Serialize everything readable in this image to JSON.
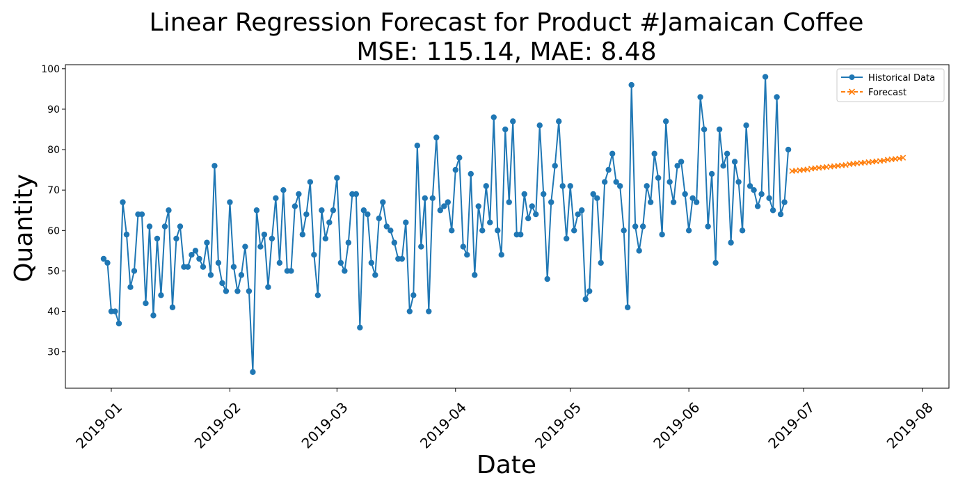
{
  "chart_data": {
    "type": "line",
    "title": "Linear Regression Forecast for Product #Jamaican Coffee",
    "subtitle": "MSE: 115.14, MAE: 8.48",
    "xlabel": "Date",
    "ylabel": "Quantity",
    "ylim": [
      21,
      101
    ],
    "xlim": [
      "2018-12-20",
      "2019-08-08"
    ],
    "yticks": [
      30,
      40,
      50,
      60,
      70,
      80,
      90,
      100
    ],
    "xticks": [
      "2019-01",
      "2019-02",
      "2019-03",
      "2019-04",
      "2019-05",
      "2019-06",
      "2019-07",
      "2019-08"
    ],
    "grid": false,
    "legend_position": "top-right",
    "series": [
      {
        "name": "Historical Data",
        "color": "#1f77b4",
        "marker": "circle",
        "start_date": "2018-12-30",
        "values": [
          53,
          52,
          40,
          40,
          37,
          67,
          59,
          46,
          50,
          64,
          64,
          42,
          61,
          39,
          58,
          44,
          61,
          65,
          41,
          58,
          61,
          51,
          51,
          54,
          55,
          53,
          51,
          57,
          49,
          76,
          52,
          47,
          45,
          67,
          51,
          45,
          49,
          56,
          45,
          25,
          65,
          56,
          59,
          46,
          58,
          68,
          52,
          70,
          50,
          50,
          66,
          69,
          59,
          64,
          72,
          54,
          44,
          65,
          58,
          62,
          65,
          73,
          52,
          50,
          57,
          69,
          69,
          36,
          65,
          64,
          52,
          49,
          63,
          67,
          61,
          60,
          57,
          53,
          53,
          62,
          40,
          44,
          81,
          56,
          68,
          40,
          68,
          83,
          65,
          66,
          67,
          60,
          75,
          78,
          56,
          54,
          74,
          49,
          66,
          60,
          71,
          62,
          88,
          60,
          54,
          85,
          67,
          87,
          59,
          59,
          69,
          63,
          66,
          64,
          86,
          69,
          48,
          67,
          76,
          87,
          71,
          58,
          71,
          60,
          64,
          65,
          43,
          45,
          69,
          68,
          52,
          72,
          75,
          79,
          72,
          71,
          60,
          41,
          96,
          61,
          55,
          61,
          71,
          67,
          79,
          73,
          59,
          87,
          72,
          67,
          76,
          77,
          69,
          60,
          68,
          67,
          93,
          85,
          61,
          74,
          52,
          85,
          76,
          79,
          57,
          77,
          72,
          60,
          86,
          71,
          70,
          66,
          69,
          98,
          68,
          65,
          93,
          64,
          67,
          80
        ]
      },
      {
        "name": "Forecast",
        "color": "#ff7f0e",
        "marker": "x",
        "start_date": "2019-06-28",
        "values": [
          74.7,
          74.8,
          74.9,
          75.0,
          75.1,
          75.3,
          75.4,
          75.5,
          75.6,
          75.7,
          75.8,
          75.9,
          76.0,
          76.1,
          76.2,
          76.4,
          76.5,
          76.6,
          76.7,
          76.8,
          76.9,
          77.0,
          77.1,
          77.2,
          77.3,
          77.5,
          77.6,
          77.7,
          77.8,
          78.0
        ]
      }
    ]
  }
}
